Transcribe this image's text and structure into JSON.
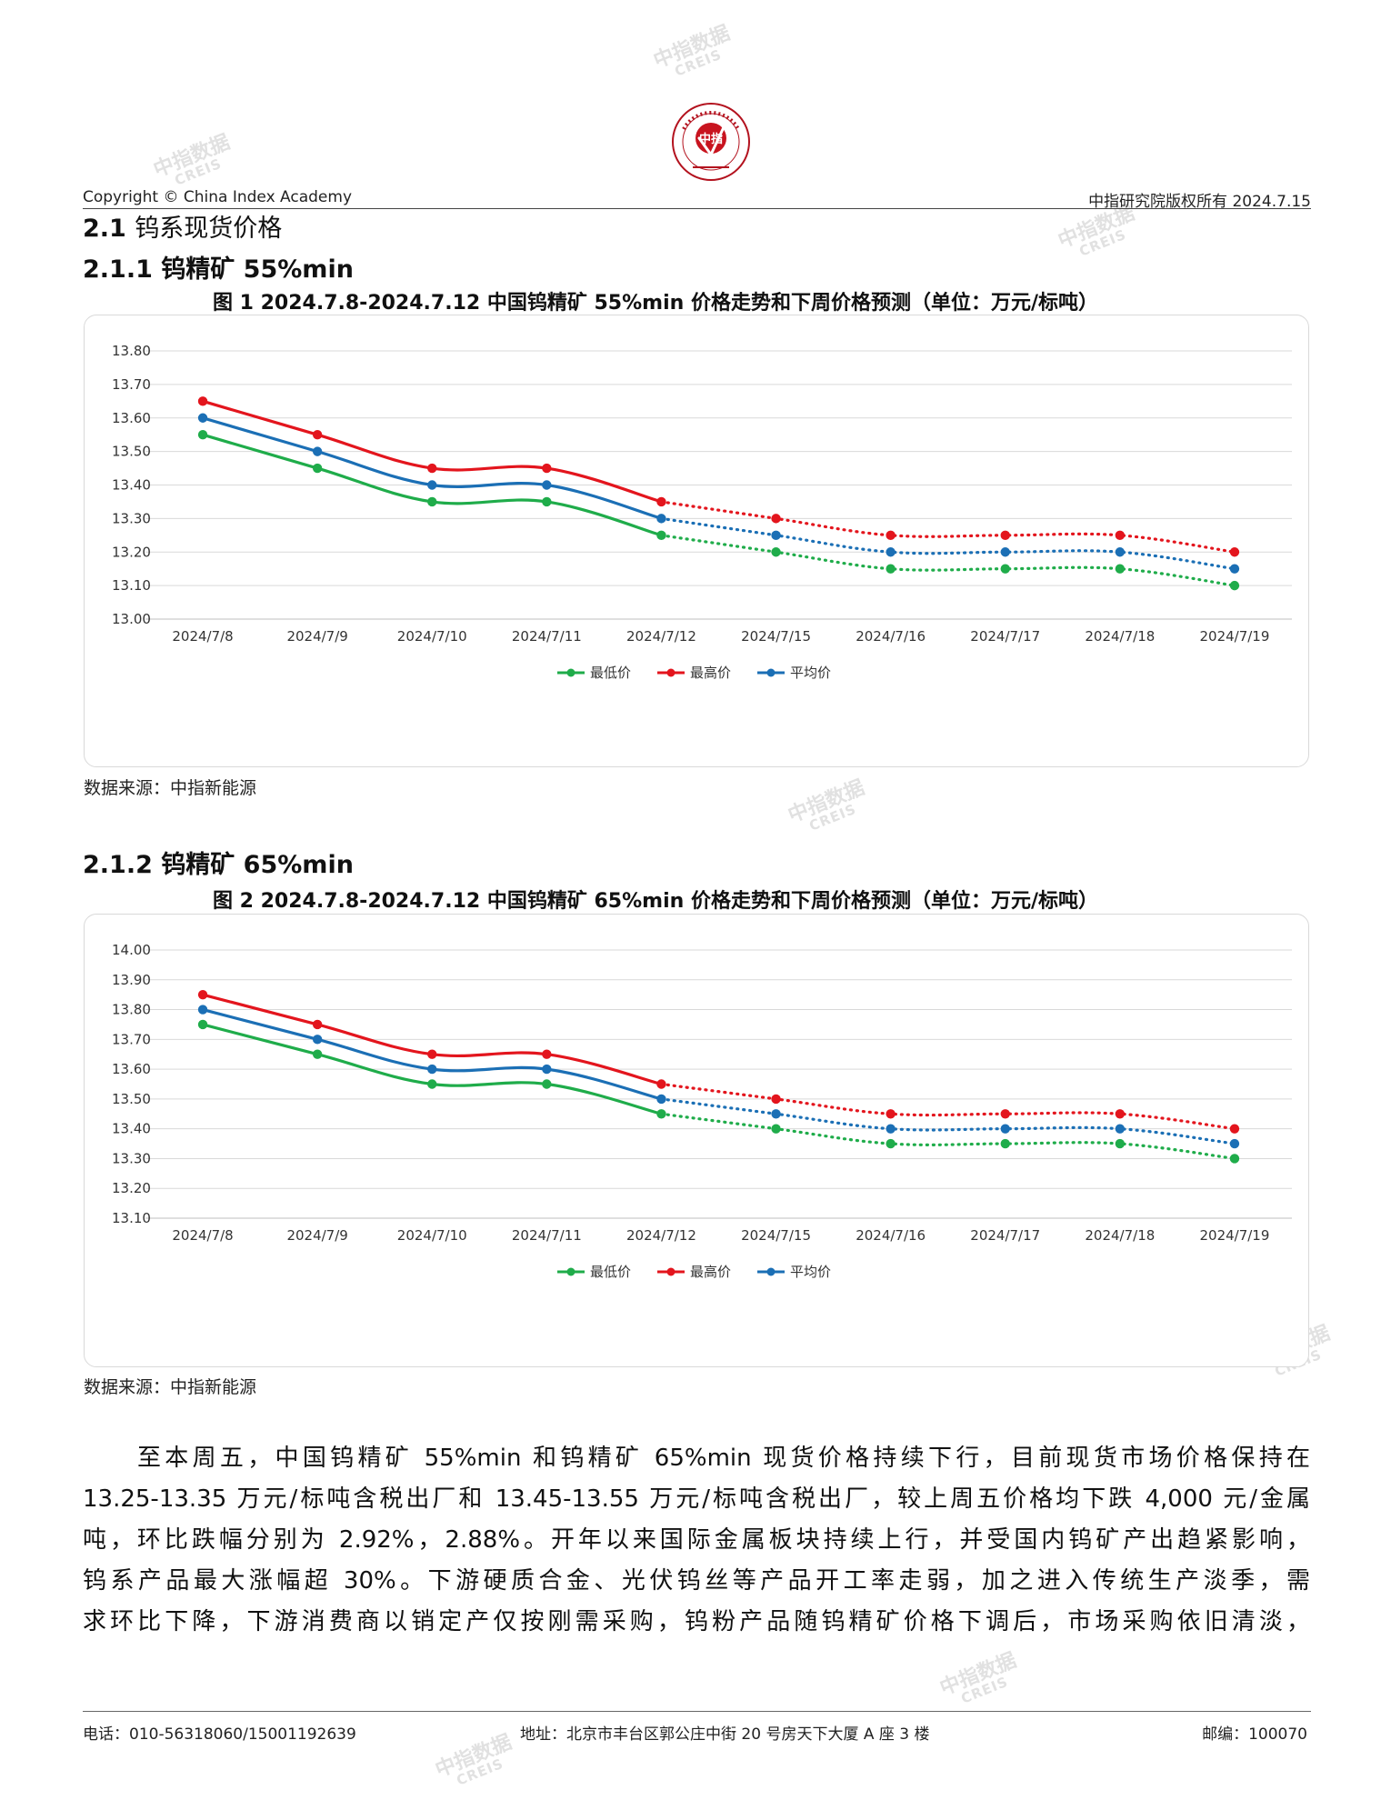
{
  "header": {
    "left": "Copyright © China Index Academy",
    "right": "中指研究院版权所有 2024.7.15",
    "logo_text": "中指"
  },
  "section": {
    "num": "2.1",
    "title": "钨系现货价格"
  },
  "sub1": {
    "num": "2.1.1",
    "title": "钨精矿 55%min"
  },
  "fig1_title": "图 1 2024.7.8-2024.7.12 中国钨精矿 55%min 价格走势和下周价格预测（单位：万元/标吨）",
  "source1": "数据来源：中指新能源",
  "sub2": {
    "num": "2.1.2",
    "title": "钨精矿 65%min"
  },
  "fig2_title": "图 2 2024.7.8-2024.7.12 中国钨精矿 65%min 价格走势和下周价格预测（单位：万元/标吨）",
  "source2": "数据来源：中指新能源",
  "paragraph_lines": [
    "至本周五，中国钨精矿 55%min 和钨精矿 65%min 现货价格持续下行，目前现货市场价格保持在",
    "13.25-13.35 万元/标吨含税出厂和 13.45-13.55 万元/标吨含税出厂，较上周五价格均下跌 4,000 元/金属",
    "吨，环比跌幅分别为 2.92%，2.88%。开年以来国际金属板块持续上行，并受国内钨矿产出趋紧影响，",
    "钨系产品最大涨幅超 30%。下游硬质合金、光伏钨丝等产品开工率走弱，加之进入传统生产淡季，需",
    "求环比下降，下游消费商以销定产仅按刚需采购，钨粉产品随钨精矿价格下调后，市场采购依旧清淡，"
  ],
  "footer": {
    "phone": "电话：010-56318060/15001192639",
    "address": "地址：北京市丰台区郭公庄中街 20 号房天下大厦 A 座 3 楼",
    "postcode": "邮编：100070"
  },
  "watermark": {
    "line1": "中指数据",
    "line2": "CREIS"
  },
  "chart_data": [
    {
      "type": "line",
      "title": "图 1 2024.7.8-2024.7.12 中国钨精矿 55%min 价格走势和下周价格预测（单位：万元/标吨）",
      "categories": [
        "2024/7/8",
        "2024/7/9",
        "2024/7/10",
        "2024/7/11",
        "2024/7/12",
        "2024/7/15",
        "2024/7/16",
        "2024/7/17",
        "2024/7/18",
        "2024/7/19"
      ],
      "actual_count": 5,
      "ylim": [
        13.0,
        13.8
      ],
      "yticks": [
        "13.00",
        "13.10",
        "13.20",
        "13.30",
        "13.40",
        "13.50",
        "13.60",
        "13.70",
        "13.80"
      ],
      "grid": true,
      "legend": "bottom",
      "series": [
        {
          "name": "最低价",
          "color": "#1fac4a",
          "values": [
            13.55,
            13.45,
            13.35,
            13.35,
            13.25,
            13.2,
            13.15,
            13.15,
            13.15,
            13.1
          ]
        },
        {
          "name": "最高价",
          "color": "#e3151d",
          "values": [
            13.65,
            13.55,
            13.45,
            13.45,
            13.35,
            13.3,
            13.25,
            13.25,
            13.25,
            13.2
          ]
        },
        {
          "name": "平均价",
          "color": "#1b6fb5",
          "values": [
            13.6,
            13.5,
            13.4,
            13.4,
            13.3,
            13.25,
            13.2,
            13.2,
            13.2,
            13.15
          ]
        }
      ]
    },
    {
      "type": "line",
      "title": "图 2 2024.7.8-2024.7.12 中国钨精矿 65%min 价格走势和下周价格预测（单位：万元/标吨）",
      "categories": [
        "2024/7/8",
        "2024/7/9",
        "2024/7/10",
        "2024/7/11",
        "2024/7/12",
        "2024/7/15",
        "2024/7/16",
        "2024/7/17",
        "2024/7/18",
        "2024/7/19"
      ],
      "actual_count": 5,
      "ylim": [
        13.1,
        14.0
      ],
      "yticks": [
        "13.10",
        "13.20",
        "13.30",
        "13.40",
        "13.50",
        "13.60",
        "13.70",
        "13.80",
        "13.90",
        "14.00"
      ],
      "grid": true,
      "legend": "bottom",
      "series": [
        {
          "name": "最低价",
          "color": "#1fac4a",
          "values": [
            13.75,
            13.65,
            13.55,
            13.55,
            13.45,
            13.4,
            13.35,
            13.35,
            13.35,
            13.3
          ]
        },
        {
          "name": "最高价",
          "color": "#e3151d",
          "values": [
            13.85,
            13.75,
            13.65,
            13.65,
            13.55,
            13.5,
            13.45,
            13.45,
            13.45,
            13.4
          ]
        },
        {
          "name": "平均价",
          "color": "#1b6fb5",
          "values": [
            13.8,
            13.7,
            13.6,
            13.6,
            13.5,
            13.45,
            13.4,
            13.4,
            13.4,
            13.35
          ]
        }
      ]
    }
  ]
}
